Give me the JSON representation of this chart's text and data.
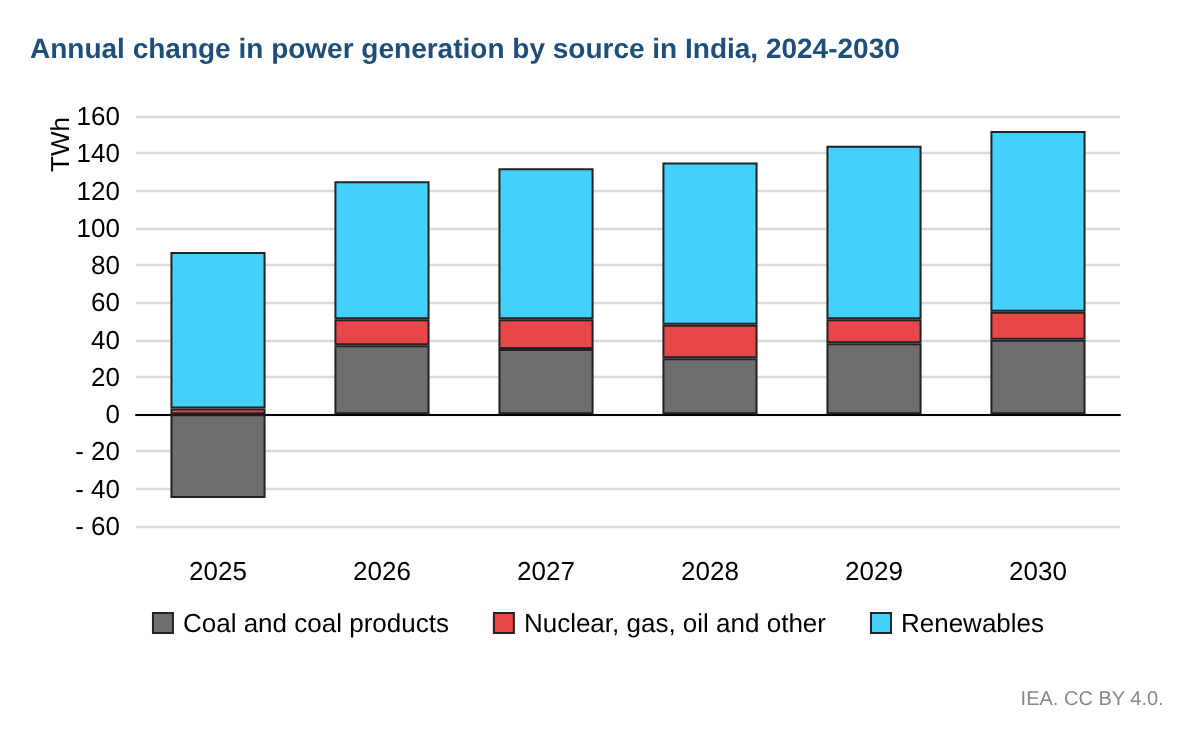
{
  "chart_data": {
    "type": "bar",
    "title": "Annual change in power generation by source in India, 2024-2030",
    "ylabel": "TWh",
    "categories": [
      "2025",
      "2026",
      "2027",
      "2028",
      "2029",
      "2030"
    ],
    "stacked": true,
    "series": [
      {
        "name": "Coal and coal products",
        "color": "#6e6e6e",
        "values": [
          -45,
          37,
          35,
          30,
          38,
          40
        ]
      },
      {
        "name": "Nuclear, gas, oil and other",
        "color": "#e8474a",
        "values": [
          3,
          14,
          16,
          18,
          13,
          15
        ]
      },
      {
        "name": "Renewables",
        "color": "#45d0fb",
        "values": [
          84,
          74,
          81,
          87,
          93,
          97
        ]
      }
    ],
    "ylim": [
      -60,
      160
    ],
    "yticks": [
      {
        "value": -60,
        "label": "- 60"
      },
      {
        "value": -40,
        "label": "- 40"
      },
      {
        "value": -20,
        "label": "- 20"
      },
      0,
      20,
      40,
      60,
      80,
      100,
      120,
      140,
      160
    ],
    "grid": "y",
    "legend": "bottom",
    "annotations": [
      "IEA. CC BY 4.0."
    ]
  }
}
